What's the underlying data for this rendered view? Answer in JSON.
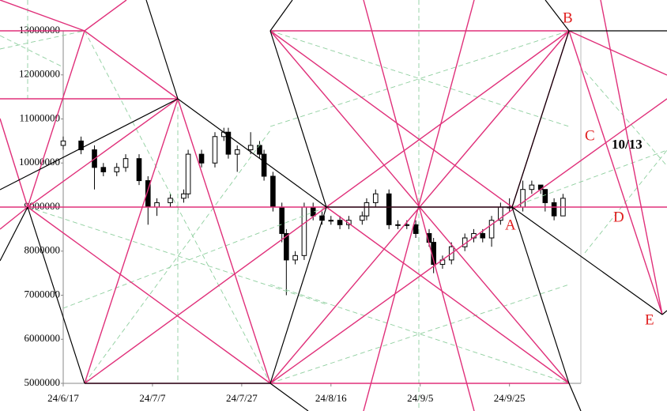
{
  "chart_data": {
    "type": "candlestick",
    "x": [
      0,
      4,
      7,
      9,
      12,
      14,
      17,
      19,
      21,
      24,
      27,
      28,
      31,
      34,
      36,
      37,
      39,
      42,
      44,
      45,
      47,
      49,
      50,
      52,
      54,
      56,
      58,
      60,
      62,
      64,
      67,
      68,
      70,
      73,
      75,
      77,
      79,
      82,
      83,
      85,
      87,
      90,
      92,
      94,
      96,
      98,
      100,
      103,
      105,
      107,
      108,
      110,
      112
    ],
    "open": [
      10400000,
      10500000,
      10300000,
      9900000,
      9800000,
      9900000,
      10100000,
      9600000,
      9000000,
      9100000,
      9200000,
      9300000,
      10200000,
      10000000,
      10600000,
      10700000,
      10200000,
      10300000,
      10400000,
      10200000,
      9700000,
      9000000,
      8400000,
      7800000,
      7900000,
      9000000,
      8800000,
      8700000,
      8700000,
      8600000,
      8700000,
      8800000,
      9100000,
      9300000,
      8600000,
      8600000,
      8600000,
      8400000,
      8200000,
      7700000,
      7800000,
      8100000,
      8300000,
      8400000,
      8300000,
      8700000,
      9000000,
      9000000,
      9400000,
      9500000,
      9400000,
      9100000,
      8800000
    ],
    "high": [
      10600000,
      10600000,
      10400000,
      10000000,
      10000000,
      10200000,
      10200000,
      9700000,
      9200000,
      9300000,
      9400000,
      10300000,
      10300000,
      10700000,
      10800000,
      10800000,
      10400000,
      10700000,
      10500000,
      10300000,
      9800000,
      9100000,
      8500000,
      8000000,
      9100000,
      9100000,
      8900000,
      8800000,
      8800000,
      8800000,
      8900000,
      9200000,
      9400000,
      9400000,
      8700000,
      8700000,
      8700000,
      8500000,
      8300000,
      7900000,
      8200000,
      8400000,
      8500000,
      8500000,
      8800000,
      9100000,
      9200000,
      9600000,
      9600000,
      9500000,
      9400000,
      9200000,
      9300000
    ],
    "low": [
      10300000,
      10200000,
      9400000,
      9700000,
      9700000,
      9800000,
      9500000,
      8600000,
      8800000,
      9000000,
      9100000,
      9200000,
      9900000,
      9900000,
      10500000,
      10100000,
      9800000,
      10200000,
      10100000,
      9600000,
      8900000,
      8200000,
      7000000,
      7700000,
      7800000,
      8700000,
      8600000,
      8600000,
      8500000,
      8500000,
      8600000,
      8700000,
      9000000,
      8500000,
      8500000,
      8500000,
      8300000,
      8100000,
      7500000,
      7600000,
      7700000,
      8000000,
      8200000,
      8200000,
      8100000,
      8600000,
      8900000,
      8900000,
      9300000,
      9300000,
      8900000,
      8700000,
      8800000
    ],
    "close": [
      10500000,
      10300000,
      9900000,
      9800000,
      9900000,
      10100000,
      9600000,
      9000000,
      9100000,
      9200000,
      9300000,
      10200000,
      10000000,
      10600000,
      10700000,
      10200000,
      10300000,
      10400000,
      10200000,
      9700000,
      9000000,
      8400000,
      7800000,
      7900000,
      9000000,
      8800000,
      8700000,
      8700000,
      8600000,
      8700000,
      8800000,
      9100000,
      9300000,
      8600000,
      8600000,
      8600000,
      8400000,
      8200000,
      7700000,
      7800000,
      8100000,
      8300000,
      8400000,
      8300000,
      8700000,
      9000000,
      9000000,
      9400000,
      9500000,
      9400000,
      9100000,
      8800000,
      9200000
    ],
    "up_color": "#ffffff",
    "down_color": "#000000",
    "xlim": [
      0,
      116
    ],
    "xticks": [
      {
        "value": 0,
        "label": "24/6/17"
      },
      {
        "value": 20,
        "label": "24/7/7"
      },
      {
        "value": 40,
        "label": "24/7/27"
      },
      {
        "value": 60,
        "label": "24/8/16"
      },
      {
        "value": 80,
        "label": "24/9/5"
      },
      {
        "value": 100,
        "label": "24/9/25"
      }
    ],
    "ylim": [
      5000000,
      13000000
    ],
    "yticks": [
      5000000,
      6000000,
      7000000,
      8000000,
      9000000,
      10000000,
      11000000,
      12000000,
      13000000
    ],
    "annotations": [
      "B",
      "C",
      "10/13",
      "D",
      "A",
      "E"
    ]
  }
}
